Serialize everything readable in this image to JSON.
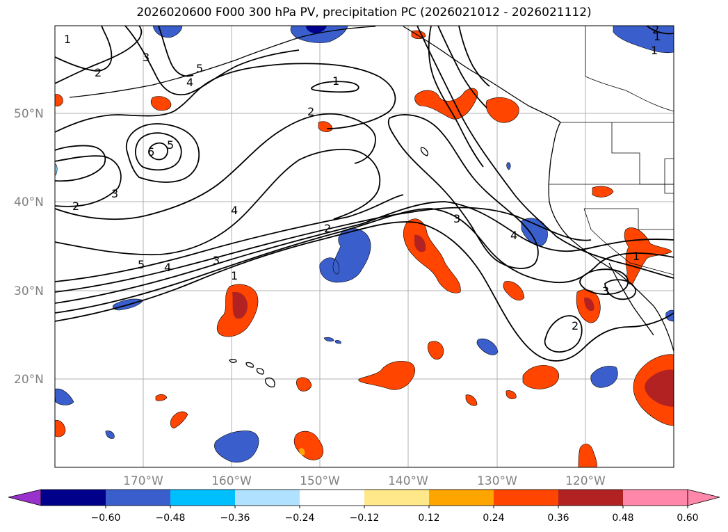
{
  "title": "2026020600 F000 300 hPa PV, precipitation PC (2026021012 - 2026021112)",
  "map": {
    "region": "Northeast Pacific / Western North America",
    "lon_range": [
      -180,
      -110
    ],
    "lat_range": [
      10,
      60
    ],
    "lat_ticks": [
      "50°N",
      "40°N",
      "30°N",
      "20°N"
    ],
    "lon_ticks": [
      "170°W",
      "160°W",
      "150°W",
      "140°W",
      "130°W",
      "120°W"
    ],
    "grid": true
  },
  "pv_contour_labels": [
    "1",
    "2",
    "3",
    "4",
    "5",
    "6",
    "1",
    "2",
    "5",
    "4",
    "3",
    "2",
    "5",
    "4",
    "3",
    "1",
    "3",
    "4",
    "2",
    "1",
    "3",
    "2",
    "1",
    "1",
    "2"
  ],
  "colorbar": {
    "tick_labels": [
      "−0.60",
      "−0.48",
      "−0.36",
      "−0.24",
      "−0.12",
      "0.12",
      "0.24",
      "0.36",
      "0.48",
      "0.60"
    ],
    "colors": [
      "#9932cc",
      "#00008b",
      "#3a5fcd",
      "#00bfff",
      "#b0e2ff",
      "#ffffff",
      "#ffe88a",
      "#ffa500",
      "#ff4500",
      "#b22222",
      "#ff88aa",
      "#ff88aa"
    ],
    "extend": "both"
  }
}
